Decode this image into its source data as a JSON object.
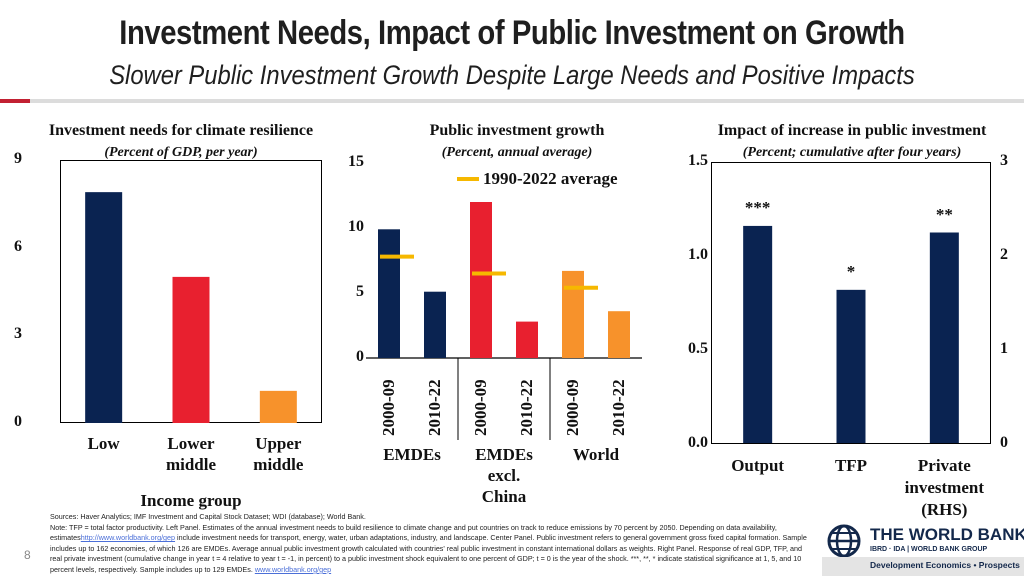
{
  "header": {
    "title": "Investment Needs, Impact of Public Investment on Growth",
    "subtitle": "Slower Public Investment Growth Despite Large Needs and Positive Impacts"
  },
  "colors": {
    "navy": "#0a2351",
    "red": "#e8202f",
    "orange": "#f7922b",
    "average_line": "#f6b800"
  },
  "chart_data": [
    {
      "type": "bar",
      "title": "Investment needs for climate resilience",
      "subtitle": "(Percent of GDP, per year)",
      "categories": [
        "Low",
        "Lower middle",
        "Upper middle"
      ],
      "category_lines": [
        [
          "Low"
        ],
        [
          "Lower",
          "middle"
        ],
        [
          "Upper",
          "middle"
        ]
      ],
      "values": [
        7.9,
        5.0,
        1.1
      ],
      "bar_colors": [
        "#0a2351",
        "#e8202f",
        "#f7922b"
      ],
      "xlabel": "Income group",
      "ylabel": "",
      "ylim": [
        0,
        9
      ],
      "yticks": [
        "0",
        "3",
        "6",
        "9"
      ]
    },
    {
      "type": "bar",
      "title": "Public investment growth",
      "subtitle": "(Percent, annual average)",
      "groups": [
        "EMDEs",
        "EMDEs excl. China",
        "World"
      ],
      "group_lines": [
        [
          "EMDEs"
        ],
        [
          "EMDEs",
          "excl.",
          "China"
        ],
        [
          "World"
        ]
      ],
      "categories": [
        "2000-09",
        "2010-22",
        "2000-09",
        "2010-22",
        "2000-09",
        "2010-22"
      ],
      "values": [
        9.9,
        5.1,
        12.0,
        2.8,
        6.7,
        3.6
      ],
      "bar_colors": [
        "#0a2351",
        "#0a2351",
        "#e8202f",
        "#e8202f",
        "#f7922b",
        "#f7922b"
      ],
      "series_average": {
        "name": "1990-2022 average",
        "values": [
          7.8,
          6.5,
          5.4
        ]
      },
      "ylim": [
        0,
        15
      ],
      "yticks": [
        "0",
        "5",
        "10",
        "15"
      ]
    },
    {
      "type": "bar",
      "title": "Impact of increase in public investment",
      "subtitle": "(Percent; cumulative after four years)",
      "categories": [
        "Output",
        "TFP",
        "Private investment (RHS)"
      ],
      "category_lines": [
        [
          "Output"
        ],
        [
          "TFP"
        ],
        [
          "Private",
          "investment",
          "(RHS)"
        ]
      ],
      "values": [
        1.16,
        0.82,
        2.25
      ],
      "axis": [
        "left",
        "left",
        "right"
      ],
      "significance": [
        "***",
        "*",
        "**"
      ],
      "bar_color": "#0a2351",
      "ylim_left": [
        0,
        1.5
      ],
      "ylim_right": [
        0,
        3
      ],
      "yticks_left": [
        "0.0",
        "0.5",
        "1.0",
        "1.5"
      ],
      "yticks_right": [
        "0",
        "1",
        "2",
        "3"
      ]
    }
  ],
  "footer": {
    "sources": "Sources: Haver Analytics; IMF Investment and Capital Stock Dataset; WDI (database); World Bank.",
    "note_a": "Note: TFP = total factor productivity. Left Panel. Estimates of the annual investment needs to build resilience to climate change and put countries on track to reduce emissions by 70 percent by 2050. Depending on data availability, estimates",
    "link1": "http://www.worldbank.org/gep",
    "note_b": " include investment needs for transport, energy, water, urban adaptations, industry, and landscape. Center Panel. Public investment refers to general government gross fixed capital formation. Sample includes up to 162 economies, of which 126 are EMDEs. Average annual public investment growth calculated with countries' real public investment in constant international dollars as weights. Right Panel. Response of real GDP, TFP, and real private investment (cumulative change in year t = 4 relative to year t = -1, in percent) to a public investment shock equivalent to one percent of GDP; t = 0 is the year of the shock. ***, **, * indicate statistical significance at 1, 5, and 10 percent levels, respectively. Sample includes up to 129 EMDEs. ",
    "link2": "www.worldbank.org/gep",
    "page_number": "8"
  },
  "logo": {
    "name": "THE WORLD BANK",
    "tagline": "IBRD · IDA | WORLD BANK GROUP",
    "department": "Development Economics • Prospects"
  }
}
